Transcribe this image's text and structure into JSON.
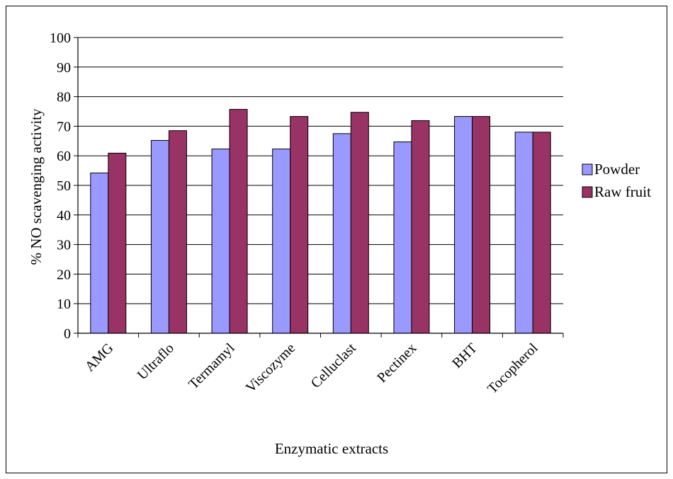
{
  "chart_data": {
    "type": "bar",
    "title": "",
    "xlabel": "Enzymatic extracts",
    "ylabel": "% NO scavenging activity",
    "categories": [
      "AMG",
      "Ultraflo",
      "Termamyl",
      "Viscozyme",
      "Celluclast",
      "Pectinex",
      "BHT",
      "Tocopherol"
    ],
    "series": [
      {
        "name": "Powder",
        "color": "#9999ff",
        "values": [
          54.2,
          65.2,
          62.3,
          62.3,
          67.5,
          64.7,
          73.3,
          68.0
        ]
      },
      {
        "name": "Raw fruit",
        "color": "#993366",
        "values": [
          60.9,
          68.5,
          75.7,
          73.3,
          74.7,
          71.9,
          73.3,
          68.0
        ]
      }
    ],
    "ylim": [
      0,
      100
    ],
    "yticks": [
      0,
      10,
      20,
      30,
      40,
      50,
      60,
      70,
      80,
      90,
      100
    ],
    "grid": true,
    "legend": "right"
  }
}
